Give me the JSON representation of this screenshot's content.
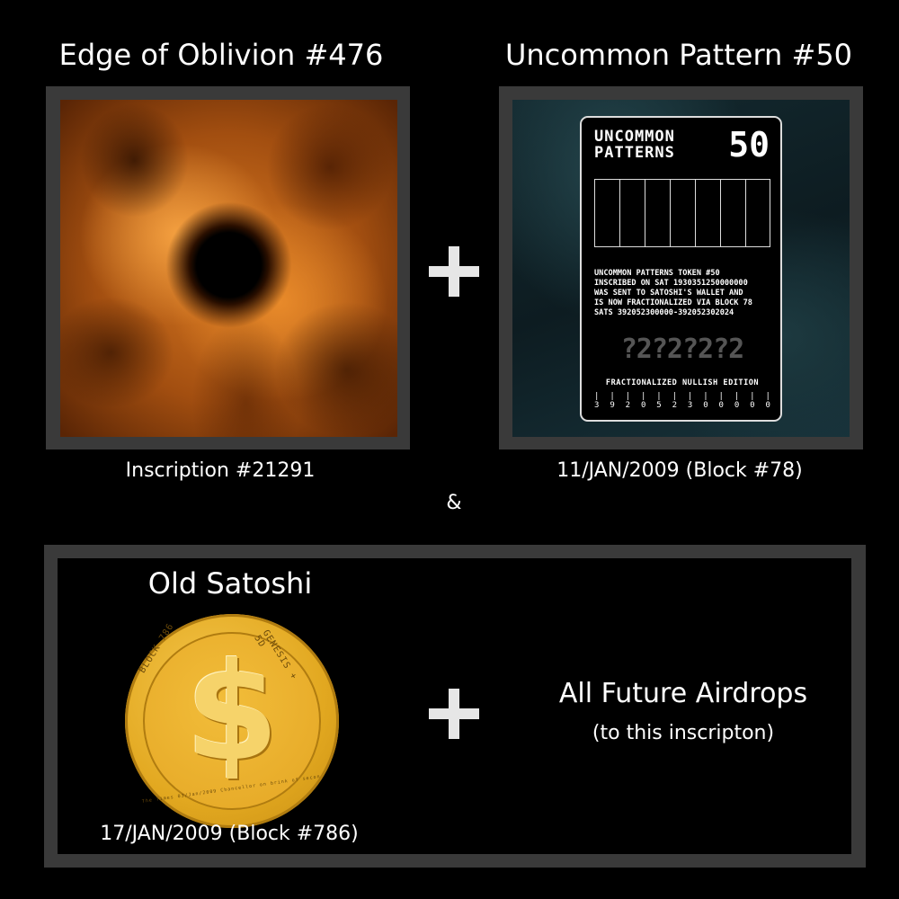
{
  "top_left": {
    "title": "Edge of Oblivion #476",
    "caption": "Inscription #21291"
  },
  "top_right": {
    "title": "Uncommon Pattern #50",
    "caption": "11/JAN/2009 (Block #78)",
    "card": {
      "heading": "UNCOMMON\nPATTERNS",
      "number": "50",
      "text": "UNCOMMON PATTERNS TOKEN #50\nINSCRIBED ON SAT 1930351250000000\nWAS SENT TO SATOSHI'S WALLET AND\nIS NOW FRACTIONALIZED VIA BLOCK 78\nSATS 392052300000-392052302024",
      "pixel_glyphs": "?2?2?2?2",
      "edition": "FRACTIONALIZED NULLISH EDITION",
      "digits": [
        "3",
        "9",
        "2",
        "0",
        "5",
        "2",
        "3",
        "0",
        "0",
        "0",
        "0",
        "0"
      ]
    }
  },
  "ampersand": "&",
  "bottom": {
    "title": "Old Satoshi",
    "caption": "17/JAN/2009 (Block #786)",
    "coin": {
      "glyph": "$",
      "ring_left": "BLOCK 786",
      "ring_right": "GENESIS + 5D",
      "ring_bottom": "The Times 03/Jan/2009 Chancellor on brink of second bailout for banks"
    },
    "airdrops_title": "All Future Airdrops",
    "airdrops_note": "(to this inscripton)"
  },
  "colors": {
    "background": "#000000",
    "frame": "#3a3a3a",
    "coin_gold": "#e2a820"
  }
}
